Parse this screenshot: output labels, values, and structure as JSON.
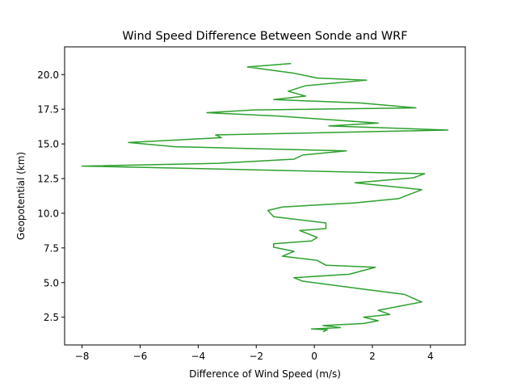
{
  "chart_data": {
    "type": "line",
    "title": "Wind Speed Difference Between Sonde and WRF",
    "xlabel": "Difference of Wind Speed (m/s)",
    "ylabel": "Geopotential (km)",
    "xlim": [
      -8.6,
      5.2
    ],
    "ylim": [
      0.5,
      22.0
    ],
    "xticks": [
      -8,
      -6,
      -4,
      -2,
      0,
      2,
      4
    ],
    "xtick_labels": [
      "−8",
      "−6",
      "−4",
      "−2",
      "0",
      "2",
      "4"
    ],
    "yticks": [
      2.5,
      5.0,
      7.5,
      10.0,
      12.5,
      15.0,
      17.5,
      20.0
    ],
    "ytick_labels": [
      "2.5",
      "5.0",
      "7.5",
      "10.0",
      "12.5",
      "15.0",
      "17.5",
      "20.0"
    ],
    "grid": false,
    "legend": "none",
    "series": [
      {
        "color": "#2ca02c",
        "points": [
          [
            0.3,
            1.45
          ],
          [
            0.45,
            1.6
          ],
          [
            -0.1,
            1.65
          ],
          [
            0.9,
            1.75
          ],
          [
            0.3,
            1.9
          ],
          [
            1.7,
            2.05
          ],
          [
            2.2,
            2.25
          ],
          [
            1.7,
            2.5
          ],
          [
            2.6,
            2.7
          ],
          [
            2.2,
            3.0
          ],
          [
            3.7,
            3.6
          ],
          [
            3.1,
            4.15
          ],
          [
            1.6,
            4.55
          ],
          [
            -0.4,
            5.1
          ],
          [
            -0.7,
            5.35
          ],
          [
            1.2,
            5.6
          ],
          [
            2.1,
            6.1
          ],
          [
            0.4,
            6.25
          ],
          [
            0.1,
            6.6
          ],
          [
            -1.1,
            6.9
          ],
          [
            -0.7,
            7.25
          ],
          [
            -1.4,
            7.55
          ],
          [
            -1.4,
            7.8
          ],
          [
            -0.1,
            8.0
          ],
          [
            0.1,
            8.25
          ],
          [
            -0.5,
            8.75
          ],
          [
            0.4,
            8.9
          ],
          [
            0.4,
            9.3
          ],
          [
            -1.4,
            9.75
          ],
          [
            -1.6,
            10.2
          ],
          [
            -1.1,
            10.45
          ],
          [
            1.4,
            10.75
          ],
          [
            2.9,
            11.05
          ],
          [
            3.7,
            11.7
          ],
          [
            1.4,
            12.2
          ],
          [
            3.4,
            12.55
          ],
          [
            3.8,
            12.85
          ],
          [
            -2.5,
            13.15
          ],
          [
            -8.0,
            13.4
          ],
          [
            -3.3,
            13.6
          ],
          [
            -0.7,
            13.9
          ],
          [
            -0.4,
            14.2
          ],
          [
            1.1,
            14.5
          ],
          [
            -4.8,
            14.8
          ],
          [
            -6.4,
            15.1
          ],
          [
            -3.2,
            15.45
          ],
          [
            -3.4,
            15.65
          ],
          [
            4.6,
            16.0
          ],
          [
            0.5,
            16.3
          ],
          [
            2.2,
            16.5
          ],
          [
            -1.2,
            17.0
          ],
          [
            -3.7,
            17.25
          ],
          [
            -2.1,
            17.45
          ],
          [
            3.5,
            17.6
          ],
          [
            1.6,
            17.95
          ],
          [
            -1.4,
            18.2
          ],
          [
            -0.3,
            18.45
          ],
          [
            -0.9,
            18.8
          ],
          [
            -0.3,
            19.2
          ],
          [
            1.8,
            19.6
          ],
          [
            0.1,
            19.75
          ],
          [
            -0.7,
            20.1
          ],
          [
            -2.3,
            20.55
          ],
          [
            -0.8,
            20.8
          ]
        ]
      }
    ]
  }
}
